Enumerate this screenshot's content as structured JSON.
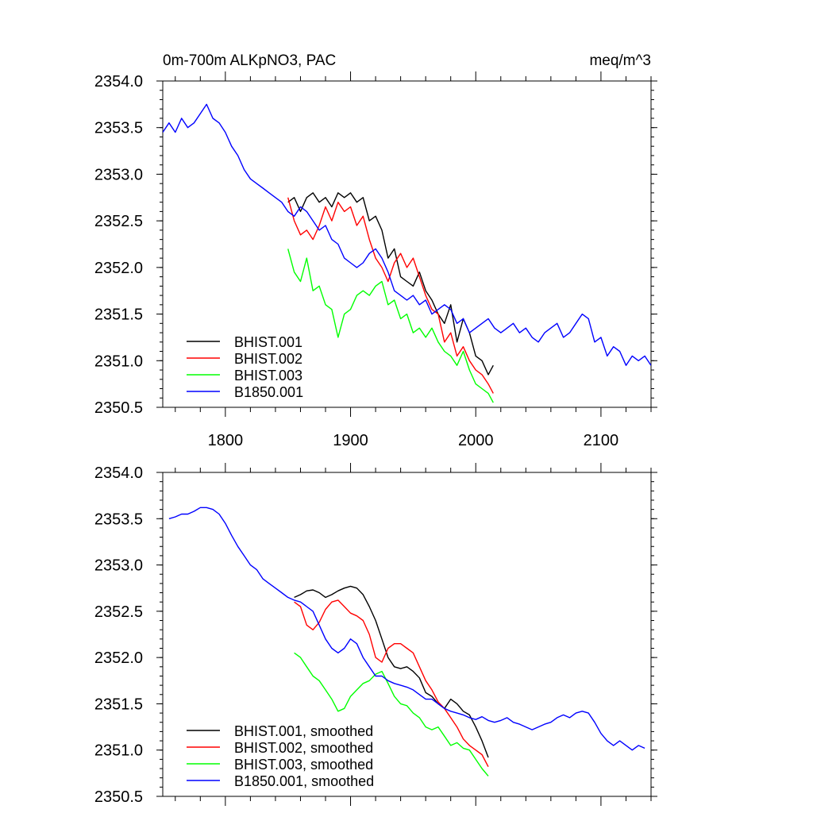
{
  "chart_data": [
    {
      "type": "line",
      "title": "0m-700m ALKpNO3, PAC",
      "units": "meq/m^3",
      "xlim": [
        1750,
        2140
      ],
      "ylim": [
        2350.5,
        2354.0
      ],
      "xticks": [
        1800,
        1900,
        2000,
        2100
      ],
      "xtick_labels": [
        "1800",
        "1900",
        "2000",
        "2100"
      ],
      "yticks": [
        2350.5,
        2351.0,
        2351.5,
        2352.0,
        2352.5,
        2353.0,
        2353.5,
        2354.0
      ],
      "ytick_labels": [
        "2350.5",
        "2351.0",
        "2351.5",
        "2352.0",
        "2352.5",
        "2353.0",
        "2353.5",
        "2354.0"
      ],
      "legend": "bottom-left",
      "series": [
        {
          "name": "BHIST.001",
          "color": "#000000",
          "x": [
            1850,
            1855,
            1860,
            1865,
            1870,
            1875,
            1880,
            1885,
            1890,
            1895,
            1900,
            1905,
            1910,
            1915,
            1920,
            1925,
            1930,
            1935,
            1940,
            1945,
            1950,
            1955,
            1960,
            1965,
            1970,
            1975,
            1980,
            1985,
            1990,
            1995,
            2000,
            2005,
            2010,
            2014
          ],
          "y": [
            2352.7,
            2352.75,
            2352.6,
            2352.75,
            2352.8,
            2352.7,
            2352.75,
            2352.65,
            2352.8,
            2352.75,
            2352.8,
            2352.7,
            2352.75,
            2352.5,
            2352.55,
            2352.4,
            2352.1,
            2352.2,
            2351.9,
            2351.85,
            2351.8,
            2351.95,
            2351.75,
            2351.65,
            2351.5,
            2351.4,
            2351.6,
            2351.2,
            2351.45,
            2351.3,
            2351.05,
            2351.0,
            2350.85,
            2350.95
          ]
        },
        {
          "name": "BHIST.002",
          "color": "#ff0000",
          "x": [
            1850,
            1855,
            1860,
            1865,
            1870,
            1875,
            1880,
            1885,
            1890,
            1895,
            1900,
            1905,
            1910,
            1915,
            1920,
            1925,
            1930,
            1935,
            1940,
            1945,
            1950,
            1955,
            1960,
            1965,
            1970,
            1975,
            1980,
            1985,
            1990,
            1995,
            2000,
            2005,
            2010,
            2014
          ],
          "y": [
            2352.75,
            2352.5,
            2352.35,
            2352.4,
            2352.3,
            2352.45,
            2352.65,
            2352.5,
            2352.7,
            2352.6,
            2352.65,
            2352.45,
            2352.55,
            2352.3,
            2352.1,
            2352.0,
            2351.85,
            2352.05,
            2352.15,
            2352.0,
            2352.1,
            2351.9,
            2351.7,
            2351.55,
            2351.5,
            2351.2,
            2351.3,
            2351.05,
            2351.15,
            2351.0,
            2350.9,
            2350.85,
            2350.75,
            2350.65
          ]
        },
        {
          "name": "BHIST.003",
          "color": "#00ff00",
          "x": [
            1850,
            1855,
            1860,
            1865,
            1870,
            1875,
            1880,
            1885,
            1890,
            1895,
            1900,
            1905,
            1910,
            1915,
            1920,
            1925,
            1930,
            1935,
            1940,
            1945,
            1950,
            1955,
            1960,
            1965,
            1970,
            1975,
            1980,
            1985,
            1990,
            1995,
            2000,
            2005,
            2010,
            2014
          ],
          "y": [
            2352.2,
            2351.95,
            2351.85,
            2352.1,
            2351.75,
            2351.8,
            2351.6,
            2351.55,
            2351.25,
            2351.5,
            2351.55,
            2351.7,
            2351.75,
            2351.7,
            2351.8,
            2351.85,
            2351.6,
            2351.65,
            2351.45,
            2351.5,
            2351.3,
            2351.35,
            2351.25,
            2351.35,
            2351.2,
            2351.1,
            2351.05,
            2350.95,
            2351.1,
            2350.9,
            2350.75,
            2350.7,
            2350.65,
            2350.55
          ]
        },
        {
          "name": "B1850.001",
          "color": "#0000ff",
          "x": [
            1750,
            1755,
            1760,
            1765,
            1770,
            1775,
            1780,
            1785,
            1790,
            1795,
            1800,
            1805,
            1810,
            1815,
            1820,
            1825,
            1830,
            1835,
            1840,
            1845,
            1850,
            1855,
            1860,
            1865,
            1870,
            1875,
            1880,
            1885,
            1890,
            1895,
            1900,
            1905,
            1910,
            1915,
            1920,
            1925,
            1930,
            1935,
            1940,
            1945,
            1950,
            1955,
            1960,
            1965,
            1970,
            1975,
            1980,
            1985,
            1990,
            1995,
            2000,
            2005,
            2010,
            2015,
            2020,
            2025,
            2030,
            2035,
            2040,
            2045,
            2050,
            2055,
            2060,
            2065,
            2070,
            2075,
            2080,
            2085,
            2090,
            2095,
            2100,
            2105,
            2110,
            2115,
            2120,
            2125,
            2130,
            2135,
            2140
          ],
          "y": [
            2353.45,
            2353.55,
            2353.45,
            2353.6,
            2353.5,
            2353.55,
            2353.65,
            2353.75,
            2353.6,
            2353.55,
            2353.45,
            2353.3,
            2353.2,
            2353.05,
            2352.95,
            2352.9,
            2352.85,
            2352.8,
            2352.75,
            2352.7,
            2352.6,
            2352.55,
            2352.65,
            2352.6,
            2352.5,
            2352.4,
            2352.45,
            2352.3,
            2352.25,
            2352.1,
            2352.05,
            2352.0,
            2352.05,
            2352.15,
            2352.2,
            2352.1,
            2351.95,
            2351.75,
            2351.7,
            2351.65,
            2351.7,
            2351.6,
            2351.65,
            2351.5,
            2351.55,
            2351.6,
            2351.55,
            2351.4,
            2351.45,
            2351.3,
            2351.35,
            2351.4,
            2351.45,
            2351.35,
            2351.3,
            2351.35,
            2351.4,
            2351.3,
            2351.35,
            2351.25,
            2351.2,
            2351.3,
            2351.35,
            2351.4,
            2351.25,
            2351.3,
            2351.4,
            2351.5,
            2351.45,
            2351.2,
            2351.25,
            2351.05,
            2351.15,
            2351.1,
            2350.95,
            2351.05,
            2351.0,
            2351.05,
            2350.95
          ]
        }
      ]
    },
    {
      "type": "line",
      "xlim": [
        1750,
        2140
      ],
      "ylim": [
        2350.5,
        2354.0
      ],
      "xticks": [
        1800,
        1900,
        2000,
        2100
      ],
      "yticks": [
        2350.5,
        2351.0,
        2351.5,
        2352.0,
        2352.5,
        2353.0,
        2353.5,
        2354.0
      ],
      "ytick_labels": [
        "2350.5",
        "2351.0",
        "2351.5",
        "2352.0",
        "2352.5",
        "2353.0",
        "2353.5",
        "2354.0"
      ],
      "legend": "bottom-left",
      "series": [
        {
          "name": "BHIST.001, smoothed",
          "color": "#000000",
          "x": [
            1855,
            1860,
            1865,
            1870,
            1875,
            1880,
            1885,
            1890,
            1895,
            1900,
            1905,
            1910,
            1915,
            1920,
            1925,
            1930,
            1935,
            1940,
            1945,
            1950,
            1955,
            1960,
            1965,
            1970,
            1975,
            1980,
            1985,
            1990,
            1995,
            2000,
            2005,
            2010
          ],
          "y": [
            2352.65,
            2352.68,
            2352.72,
            2352.73,
            2352.7,
            2352.65,
            2352.68,
            2352.72,
            2352.75,
            2352.77,
            2352.75,
            2352.68,
            2352.55,
            2352.4,
            2352.2,
            2352.0,
            2351.9,
            2351.88,
            2351.9,
            2351.85,
            2351.78,
            2351.62,
            2351.58,
            2351.5,
            2351.45,
            2351.55,
            2351.5,
            2351.42,
            2351.38,
            2351.25,
            2351.1,
            2350.92
          ]
        },
        {
          "name": "BHIST.002, smoothed",
          "color": "#ff0000",
          "x": [
            1855,
            1860,
            1865,
            1870,
            1875,
            1880,
            1885,
            1890,
            1895,
            1900,
            1905,
            1910,
            1915,
            1920,
            1925,
            1930,
            1935,
            1940,
            1945,
            1950,
            1955,
            1960,
            1965,
            1970,
            1975,
            1980,
            1985,
            1990,
            1995,
            2000,
            2005,
            2010
          ],
          "y": [
            2352.6,
            2352.55,
            2352.35,
            2352.3,
            2352.38,
            2352.52,
            2352.6,
            2352.62,
            2352.55,
            2352.48,
            2352.45,
            2352.4,
            2352.25,
            2352.0,
            2351.95,
            2352.1,
            2352.15,
            2352.15,
            2352.1,
            2352.05,
            2351.9,
            2351.75,
            2351.65,
            2351.52,
            2351.45,
            2351.35,
            2351.25,
            2351.12,
            2351.05,
            2351.0,
            2350.95,
            2350.82
          ]
        },
        {
          "name": "BHIST.003, smoothed",
          "color": "#00ff00",
          "x": [
            1855,
            1860,
            1865,
            1870,
            1875,
            1880,
            1885,
            1890,
            1895,
            1900,
            1905,
            1910,
            1915,
            1920,
            1925,
            1930,
            1935,
            1940,
            1945,
            1950,
            1955,
            1960,
            1965,
            1970,
            1975,
            1980,
            1985,
            1990,
            1995,
            2000,
            2005,
            2010
          ],
          "y": [
            2352.05,
            2352.0,
            2351.9,
            2351.8,
            2351.75,
            2351.65,
            2351.55,
            2351.42,
            2351.45,
            2351.58,
            2351.65,
            2351.72,
            2351.75,
            2351.82,
            2351.85,
            2351.72,
            2351.58,
            2351.5,
            2351.48,
            2351.4,
            2351.35,
            2351.25,
            2351.22,
            2351.25,
            2351.15,
            2351.05,
            2351.08,
            2351.02,
            2351.0,
            2350.9,
            2350.8,
            2350.72
          ]
        },
        {
          "name": "B1850.001, smoothed",
          "color": "#0000ff",
          "x": [
            1755,
            1760,
            1765,
            1770,
            1775,
            1780,
            1785,
            1790,
            1795,
            1800,
            1805,
            1810,
            1815,
            1820,
            1825,
            1830,
            1835,
            1840,
            1845,
            1850,
            1855,
            1860,
            1865,
            1870,
            1875,
            1880,
            1885,
            1890,
            1895,
            1900,
            1905,
            1910,
            1915,
            1920,
            1925,
            1930,
            1935,
            1940,
            1945,
            1950,
            1955,
            1960,
            1965,
            1970,
            1975,
            1980,
            1985,
            1990,
            1995,
            2000,
            2005,
            2010,
            2015,
            2020,
            2025,
            2030,
            2035,
            2040,
            2045,
            2050,
            2055,
            2060,
            2065,
            2070,
            2075,
            2080,
            2085,
            2090,
            2095,
            2100,
            2105,
            2110,
            2115,
            2120,
            2125,
            2130,
            2135
          ],
          "y": [
            2353.5,
            2353.52,
            2353.55,
            2353.55,
            2353.58,
            2353.62,
            2353.62,
            2353.6,
            2353.55,
            2353.45,
            2353.32,
            2353.2,
            2353.1,
            2353.0,
            2352.95,
            2352.85,
            2352.8,
            2352.75,
            2352.7,
            2352.65,
            2352.62,
            2352.6,
            2352.55,
            2352.5,
            2352.35,
            2352.2,
            2352.1,
            2352.05,
            2352.1,
            2352.2,
            2352.15,
            2352.0,
            2351.9,
            2351.8,
            2351.8,
            2351.75,
            2351.72,
            2351.7,
            2351.68,
            2351.65,
            2351.6,
            2351.55,
            2351.55,
            2351.5,
            2351.45,
            2351.42,
            2351.4,
            2351.38,
            2351.35,
            2351.33,
            2351.36,
            2351.32,
            2351.3,
            2351.32,
            2351.35,
            2351.3,
            2351.28,
            2351.25,
            2351.22,
            2351.25,
            2351.28,
            2351.3,
            2351.35,
            2351.38,
            2351.35,
            2351.4,
            2351.42,
            2351.4,
            2351.3,
            2351.18,
            2351.1,
            2351.05,
            2351.1,
            2351.05,
            2351.0,
            2351.05,
            2351.02
          ]
        }
      ]
    }
  ]
}
